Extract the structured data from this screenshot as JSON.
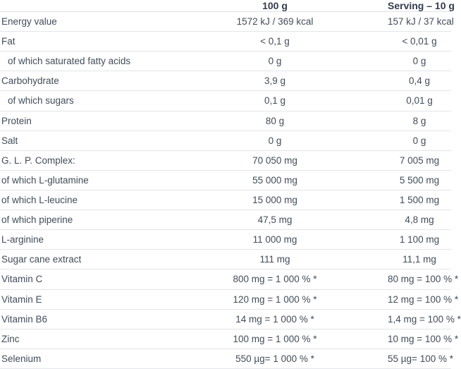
{
  "table": {
    "columns": [
      "",
      "100 g",
      "Serving – 10 g"
    ],
    "rows": [
      {
        "label": "Energy value",
        "per_100g": "1572 kJ / 369 kcal",
        "per_serving": "157 kJ / 37 kcal",
        "indent": false
      },
      {
        "label": "Fat",
        "per_100g": "< 0,1 g",
        "per_serving": "< 0,01 g",
        "indent": false
      },
      {
        "label": "of which saturated fatty acids",
        "per_100g": "0 g",
        "per_serving": "0 g",
        "indent": true
      },
      {
        "label": "Carbohydrate",
        "per_100g": "3,9 g",
        "per_serving": "0,4 g",
        "indent": false
      },
      {
        "label": "of which sugars",
        "per_100g": "0,1 g",
        "per_serving": "0,01 g",
        "indent": true
      },
      {
        "label": "Protein",
        "per_100g": "80 g",
        "per_serving": "8 g",
        "indent": false
      },
      {
        "label": "Salt",
        "per_100g": "0 g",
        "per_serving": "0 g",
        "indent": false
      },
      {
        "label": "G. L. P. Complex:",
        "per_100g": "70 050 mg",
        "per_serving": "7 005 mg",
        "indent": false
      },
      {
        "label": "of which L-glutamine",
        "per_100g": "55 000 mg",
        "per_serving": "5 500 mg",
        "indent": false
      },
      {
        "label": "of which L-leucine",
        "per_100g": "15 000 mg",
        "per_serving": "1 500 mg",
        "indent": false
      },
      {
        "label": "of which piperine",
        "per_100g": "47,5 mg",
        "per_serving": "4,8 mg",
        "indent": false
      },
      {
        "label": "L-arginine",
        "per_100g": "11 000 mg",
        "per_serving": "1 100 mg",
        "indent": false
      },
      {
        "label": "Sugar cane extract",
        "per_100g": "111 mg",
        "per_serving": "11,1 mg",
        "indent": false
      },
      {
        "label": "Vitamin C",
        "per_100g": "800 mg = 1 000 % *",
        "per_serving": "80 mg = 100 % *",
        "indent": false
      },
      {
        "label": "Vitamin E",
        "per_100g": "120 mg = 1 000 % *",
        "per_serving": "12 mg = 100 % *",
        "indent": false
      },
      {
        "label": "Vitamin B6",
        "per_100g": "14 mg = 1 000 % *",
        "per_serving": "1,4 mg = 100 % *",
        "indent": false
      },
      {
        "label": "Zinc",
        "per_100g": "100 mg = 1 000 % *",
        "per_serving": "10 mg = 100 % *",
        "indent": false
      },
      {
        "label": "Selenium",
        "per_100g": "550 µg= 1 000 % *",
        "per_serving": "55 µg= 100 % *",
        "indent": false
      }
    ]
  },
  "colors": {
    "background": "#ffffff",
    "text": "#424c59",
    "header_text": "#323d4c",
    "divider": "#e2e5e9"
  }
}
